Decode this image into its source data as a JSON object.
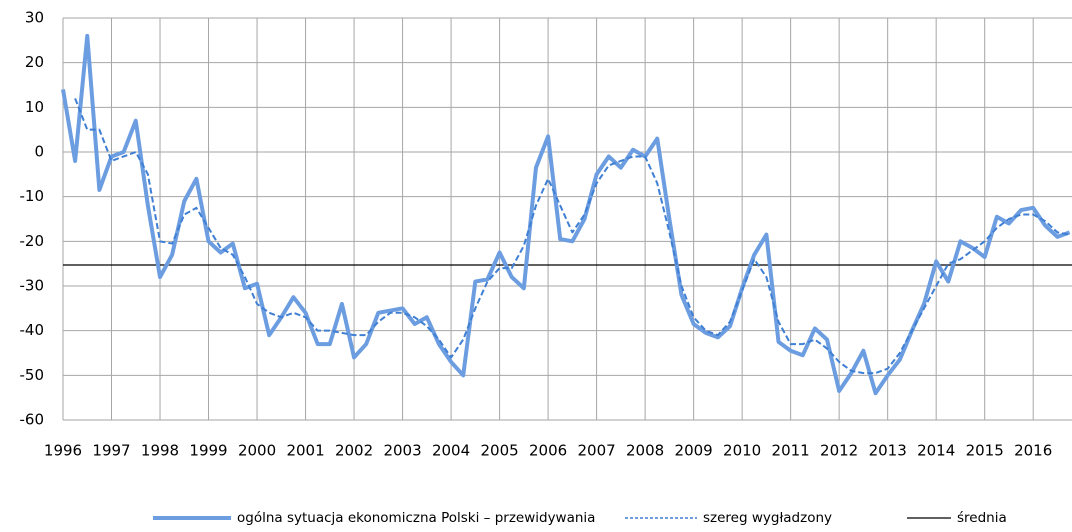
{
  "chart_data": {
    "type": "line",
    "x": [
      1996,
      1996.25,
      1996.5,
      1996.75,
      1997,
      1997.25,
      1997.5,
      1997.75,
      1998,
      1998.25,
      1998.5,
      1998.75,
      1999,
      1999.25,
      1999.5,
      1999.75,
      2000,
      2000.25,
      2000.5,
      2000.75,
      2001,
      2001.25,
      2001.5,
      2001.75,
      2002,
      2002.25,
      2002.5,
      2002.75,
      2003,
      2003.25,
      2003.5,
      2003.75,
      2004,
      2004.25,
      2004.5,
      2004.75,
      2005,
      2005.25,
      2005.5,
      2005.75,
      2006,
      2006.25,
      2006.5,
      2006.75,
      2007,
      2007.25,
      2007.5,
      2007.75,
      2008,
      2008.25,
      2008.5,
      2008.75,
      2009,
      2009.25,
      2009.5,
      2009.75,
      2010,
      2010.25,
      2010.5,
      2010.75,
      2011,
      2011.25,
      2011.5,
      2011.75,
      2012,
      2012.25,
      2012.5,
      2012.75,
      2013,
      2013.25,
      2013.5,
      2013.75,
      2014,
      2014.25,
      2014.5,
      2014.75,
      2015,
      2015.25,
      2015.5,
      2015.75,
      2016,
      2016.25,
      2016.5,
      2016.75
    ],
    "series": [
      {
        "name": "ogólna sytuacja ekonomiczna Polski – przewidywania",
        "color": "#6b9de0",
        "style": "solid",
        "values": [
          14,
          -2,
          26,
          -8.5,
          -1,
          0,
          7,
          -12,
          -28,
          -23,
          -11,
          -6,
          -20,
          -22.5,
          -20.5,
          -30.5,
          -29.5,
          -41,
          -37,
          -32.5,
          -36,
          -43,
          -43,
          -34,
          -46,
          -43,
          -36,
          -35.5,
          -35,
          -38.5,
          -37,
          -43,
          -47,
          -50,
          -29,
          -28.5,
          -22.5,
          -28,
          -30.5,
          -3.5,
          3.5,
          -19.5,
          -20,
          -15,
          -5,
          -1,
          -3.5,
          0.5,
          -1,
          3,
          -15,
          -32,
          -38.5,
          -40.5,
          -41.5,
          -39,
          -30.5,
          -23,
          -18.5,
          -42.5,
          -44.5,
          -45.5,
          -39.5,
          -42,
          -53.5,
          -49.5,
          -44.5,
          -54,
          -50,
          -46.5,
          -40,
          -34,
          -24.5,
          -29,
          -20,
          -21.5,
          -23.5,
          -14.5,
          -16,
          -13,
          -12.5,
          -16.5,
          -19,
          -18
        ]
      },
      {
        "name": "szereg wygładzony",
        "color": "#3f7fd4",
        "style": "dashed",
        "values": [
          null,
          12,
          5,
          5,
          -2,
          -1,
          0,
          -5,
          -20,
          -20.5,
          -14,
          -12.5,
          -17,
          -21.5,
          -23,
          -28,
          -34,
          -36,
          -37,
          -36,
          -37,
          -40,
          -40,
          -40.5,
          -41,
          -41,
          -38,
          -36,
          -36,
          -37,
          -39,
          -42,
          -46,
          -42,
          -35,
          -29,
          -26,
          -26,
          -21,
          -12,
          -6,
          -12,
          -18,
          -14,
          -7,
          -3,
          -2,
          -1,
          -1,
          -7,
          -18,
          -30,
          -37,
          -40,
          -41,
          -38,
          -31,
          -24,
          -28,
          -38,
          -43,
          -43,
          -42,
          -44,
          -47,
          -49,
          -49.5,
          -49.5,
          -48.5,
          -45,
          -40,
          -35,
          -30,
          -25,
          -24,
          -22,
          -20,
          -17,
          -15,
          -14,
          -14,
          -15.5,
          -18,
          -18.5
        ]
      }
    ],
    "mean_line": {
      "name": "średnia",
      "value": -25.3,
      "color": "#000000"
    },
    "xlim": [
      1996,
      2016.8
    ],
    "xticks": [
      1996,
      1997,
      1998,
      1999,
      2000,
      2001,
      2002,
      2003,
      2004,
      2005,
      2006,
      2007,
      2008,
      2009,
      2010,
      2011,
      2012,
      2013,
      2014,
      2015,
      2016
    ],
    "ylim": [
      -60,
      30
    ],
    "yticks": [
      -60,
      -50,
      -40,
      -30,
      -20,
      -10,
      0,
      10,
      20,
      30
    ],
    "grid": true,
    "legend": "bottom"
  }
}
